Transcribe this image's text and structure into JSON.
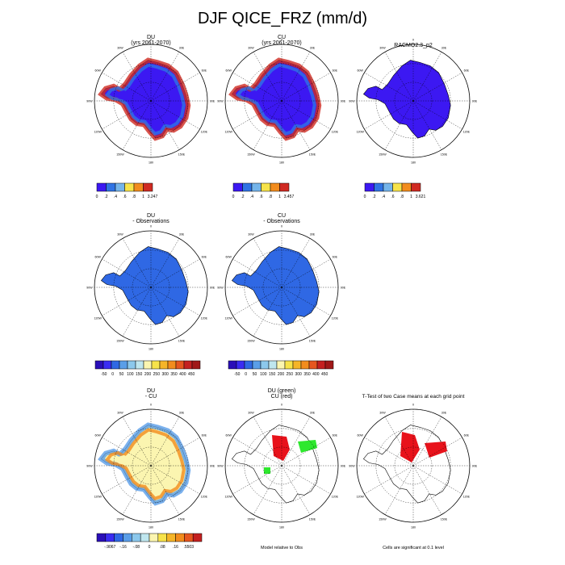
{
  "title": "DJF QICE_FRZ (mm/d)",
  "chart_data": [
    {
      "type": "map",
      "panel": "top-left",
      "title": [
        "DU",
        "(yrs 2061-2070)"
      ],
      "cbar_colors": [
        "#3c18f2",
        "#2f73e4",
        "#74b4ea",
        "#f7e34a",
        "#f28c1d",
        "#d02a22"
      ],
      "cbar_labels": [
        "0",
        ".2",
        ".4",
        ".6",
        ".8",
        "1",
        "3.247"
      ]
    },
    {
      "type": "map",
      "panel": "top-middle",
      "title": [
        "CU",
        "(yrs 2061-2070)"
      ],
      "cbar_colors": [
        "#3c18f2",
        "#2f73e4",
        "#74b4ea",
        "#f7e34a",
        "#f28c1d",
        "#d02a22"
      ],
      "cbar_labels": [
        "0",
        ".2",
        ".4",
        ".6",
        ".8",
        "1",
        "3.457"
      ]
    },
    {
      "type": "map",
      "panel": "top-right",
      "title": [
        "RACMO2.3_p2"
      ],
      "cbar_colors": [
        "#3c18f2",
        "#2f73e4",
        "#74b4ea",
        "#f7e34a",
        "#f28c1d",
        "#d02a22"
      ],
      "cbar_labels": [
        "0",
        ".2",
        ".4",
        ".6",
        ".8",
        "1",
        "3.621"
      ]
    },
    {
      "type": "map",
      "panel": "mid-left",
      "title": [
        "DU",
        "- Observations"
      ],
      "cbar_colors": [
        "#2a0fb8",
        "#3a2cf2",
        "#2f68e4",
        "#5a9ee8",
        "#8cc8ec",
        "#bfe6ee",
        "#fbf5b0",
        "#f7e34a",
        "#f5b528",
        "#f28c1d",
        "#e6561f",
        "#c42020",
        "#a01818"
      ],
      "cbar_labels": [
        "-50",
        "0",
        "50",
        "100",
        "150",
        "200",
        "250",
        "300",
        "350",
        "400",
        "450"
      ]
    },
    {
      "type": "map",
      "panel": "mid-middle",
      "title": [
        "CU",
        "- Observations"
      ],
      "cbar_colors": [
        "#2a0fb8",
        "#3a2cf2",
        "#2f68e4",
        "#5a9ee8",
        "#8cc8ec",
        "#bfe6ee",
        "#fbf5b0",
        "#f7e34a",
        "#f5b528",
        "#f28c1d",
        "#e6561f",
        "#c42020",
        "#a01818"
      ],
      "cbar_labels": [
        "-50",
        "0",
        "50",
        "100",
        "150",
        "200",
        "250",
        "300",
        "350",
        "400",
        "450"
      ]
    },
    {
      "type": "map",
      "panel": "bottom-left",
      "title": [
        "DU",
        "- CU"
      ],
      "cbar_colors": [
        "#2a0fb8",
        "#3a2cf2",
        "#2f68e4",
        "#5a9ee8",
        "#8cc8ec",
        "#bfe6ee",
        "#fbf5b0",
        "#f7e34a",
        "#f5b528",
        "#f28c1d",
        "#e6561f",
        "#c42020"
      ],
      "cbar_labels": [
        "-.9067",
        "-.16",
        "-.08",
        "0",
        ".08",
        ".16",
        ".5503"
      ]
    },
    {
      "type": "map",
      "panel": "bottom-middle",
      "title": [
        "DU (green)",
        "CU (red)"
      ],
      "footnote": "Model relative to Obs"
    },
    {
      "type": "map",
      "panel": "bottom-right",
      "title": [
        "T-Test of two Case means at each grid point"
      ],
      "footnote": "Cells are significant at 0.1 level"
    }
  ],
  "longitude_labels": [
    "0",
    "30E",
    "60E",
    "90E",
    "120E",
    "150E",
    "180",
    "150W",
    "120W",
    "90W",
    "60W",
    "30W"
  ]
}
